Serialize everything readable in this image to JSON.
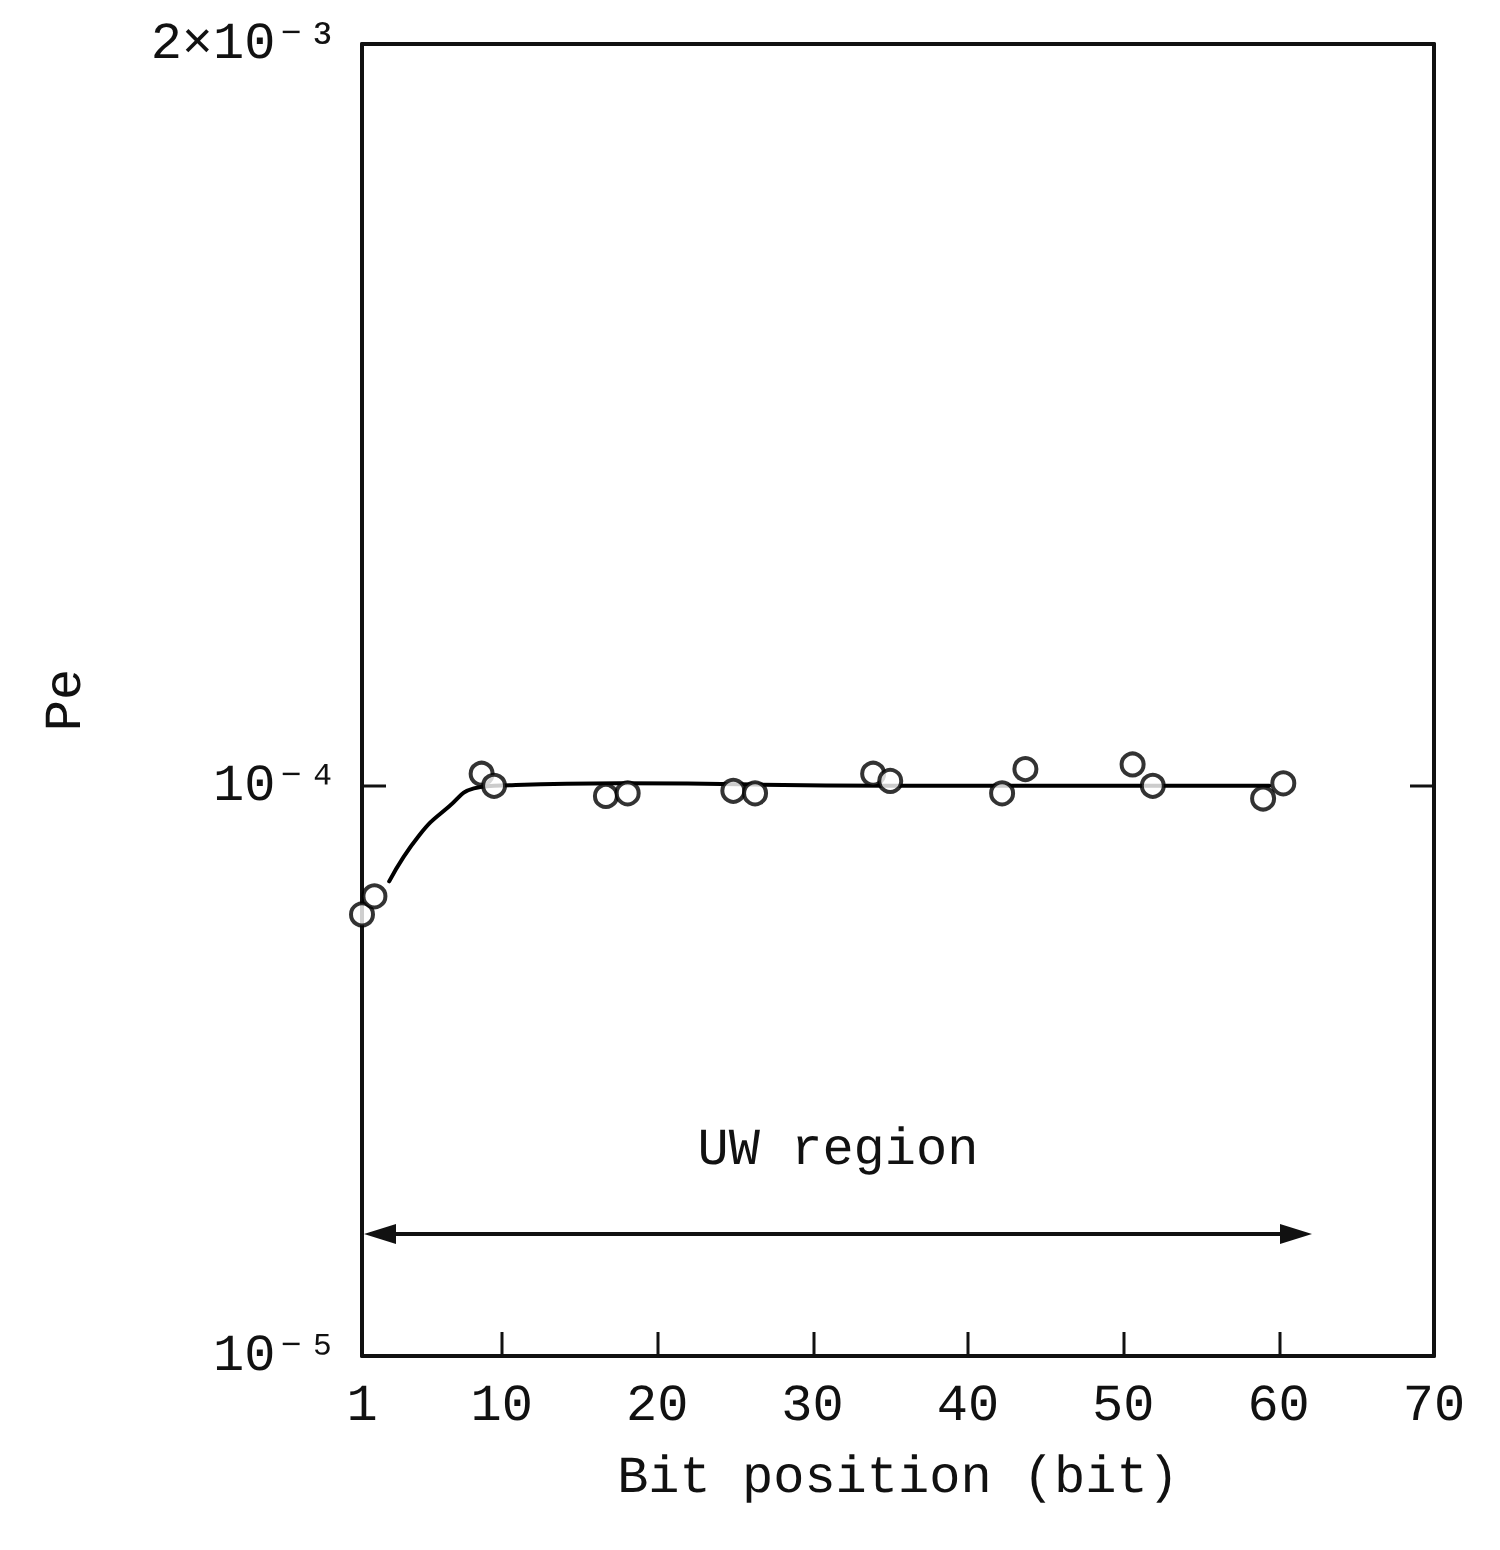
{
  "chart_data": {
    "type": "scatter",
    "xlabel": "Bit position (bit)",
    "ylabel": "Pe",
    "log": "y",
    "xlim": [
      1,
      70
    ],
    "xticks": [
      1,
      10,
      20,
      30,
      40,
      50,
      60,
      70
    ],
    "ylim": [
      1e-05,
      0.002
    ],
    "yticks": [
      {
        "value": 1e-05,
        "label": "10⁻⁵"
      },
      {
        "value": 0.0001,
        "label": "10⁻⁴"
      },
      {
        "value": 0.002,
        "label": "2×10⁻³"
      }
    ],
    "grid": false,
    "series": [
      {
        "color": "#000000",
        "marker": "circle",
        "x": [
          1,
          1.8,
          8.7,
          9.5,
          16.7,
          18.1,
          24.9,
          26.3,
          33.9,
          35.0,
          42.2,
          43.7,
          50.6,
          51.9,
          59.0,
          60.3
        ],
        "values": [
          5.95e-05,
          6.4e-05,
          0.000105,
          0.0001,
          9.6e-05,
          9.7e-05,
          9.8e-05,
          9.7e-05,
          0.000105,
          0.000102,
          9.7e-05,
          0.000107,
          0.000109,
          0.0001,
          9.5e-05,
          0.000101
        ]
      },
      {
        "type": "line",
        "color": "#000000",
        "marker": "none",
        "line_style": "solid",
        "x": [
          2.75,
          4.7,
          6.6,
          8.2,
          9.5,
          17.6,
          35,
          59.4
        ],
        "values": [
          6.8e-05,
          8.2e-05,
          9.2e-05,
          9.9e-05,
          0.0001,
          0.000101,
          0.0001,
          0.0001
        ]
      }
    ],
    "annotations": [
      "UW region"
    ]
  }
}
